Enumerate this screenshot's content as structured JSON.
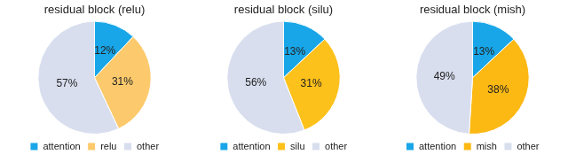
{
  "chart_data": [
    {
      "type": "pie",
      "title": "residual block (relu)",
      "categories": [
        "attention",
        "relu",
        "other"
      ],
      "values": [
        12,
        31,
        57
      ],
      "value_labels": [
        "12%",
        "31%",
        "57%"
      ],
      "colors": [
        "#18a6e8",
        "#fcca6c",
        "#d8deee"
      ],
      "data_labels": true,
      "legend": "bottom"
    },
    {
      "type": "pie",
      "title": "residual block (silu)",
      "categories": [
        "attention",
        "silu",
        "other"
      ],
      "values": [
        13,
        31,
        56
      ],
      "value_labels": [
        "13%",
        "31%",
        "56%"
      ],
      "colors": [
        "#18a6e8",
        "#fdc11c",
        "#d8deee"
      ],
      "data_labels": true,
      "legend": "bottom"
    },
    {
      "type": "pie",
      "title": "residual block (mish)",
      "categories": [
        "attention",
        "mish",
        "other"
      ],
      "values": [
        13,
        38,
        49
      ],
      "value_labels": [
        "13%",
        "38%",
        "49%"
      ],
      "colors": [
        "#18a6e8",
        "#fcb813",
        "#d8deee"
      ],
      "data_labels": true,
      "legend": "bottom"
    }
  ]
}
